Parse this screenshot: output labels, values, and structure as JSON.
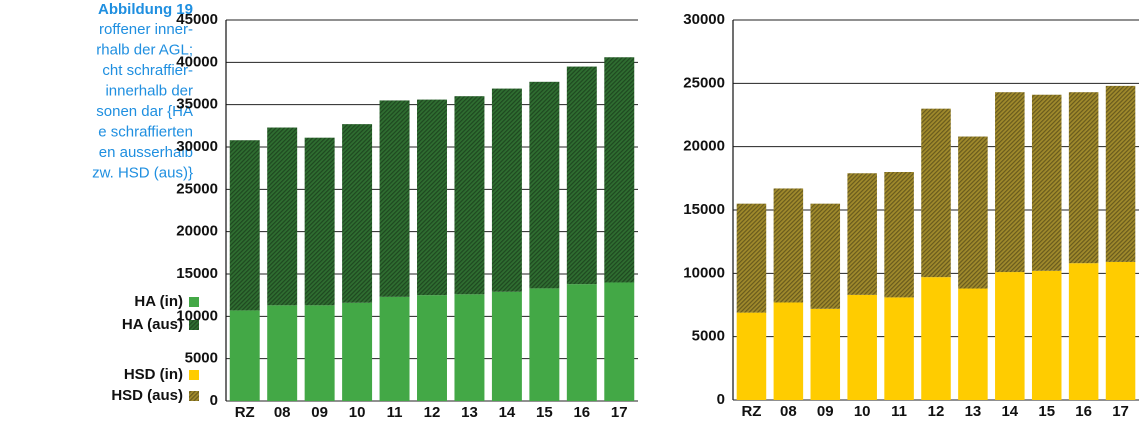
{
  "caption": {
    "title": "Abbildung 19",
    "lines": [
      "roffener inner-",
      "rhalb der AGL;",
      "cht schraffier-",
      "innerhalb der",
      "sonen dar {HA",
      "e schraffierten",
      "en ausserhalb",
      "zw. HSD (aus)}"
    ]
  },
  "chart_data": [
    {
      "type": "stacked_bar",
      "categories": [
        "RZ",
        "08",
        "09",
        "10",
        "11",
        "12",
        "13",
        "14",
        "15",
        "16",
        "17"
      ],
      "series": [
        {
          "name": "HA (in)",
          "color": "#43a846",
          "values": [
            10700,
            11300,
            11300,
            11600,
            12300,
            12500,
            12600,
            12900,
            13300,
            13800,
            14000
          ]
        },
        {
          "name": "HA (aus)",
          "color": "#2f6e31",
          "hatch": true,
          "values": [
            20100,
            21000,
            19800,
            21100,
            23200,
            23100,
            23400,
            24000,
            24400,
            25700,
            26600
          ]
        }
      ],
      "ylim": [
        0,
        45000
      ],
      "yticks": [
        0,
        5000,
        10000,
        15000,
        20000,
        25000,
        30000,
        35000,
        40000,
        45000
      ],
      "grid": true
    },
    {
      "type": "stacked_bar",
      "categories": [
        "RZ",
        "08",
        "09",
        "10",
        "11",
        "12",
        "13",
        "14",
        "15",
        "16",
        "17"
      ],
      "series": [
        {
          "name": "HSD (in)",
          "color": "#ffcc00",
          "values": [
            6900,
            7700,
            7200,
            8300,
            8100,
            9700,
            8800,
            10100,
            10200,
            10800,
            10900
          ]
        },
        {
          "name": "HSD (aus)",
          "color": "#a08a2c",
          "hatch": true,
          "values": [
            8600,
            9000,
            8300,
            9600,
            9900,
            13300,
            12000,
            14200,
            13900,
            13500,
            13900
          ]
        }
      ],
      "ylim": [
        0,
        30000
      ],
      "yticks": [
        0,
        5000,
        10000,
        15000,
        20000,
        25000,
        30000
      ],
      "grid": true
    }
  ]
}
